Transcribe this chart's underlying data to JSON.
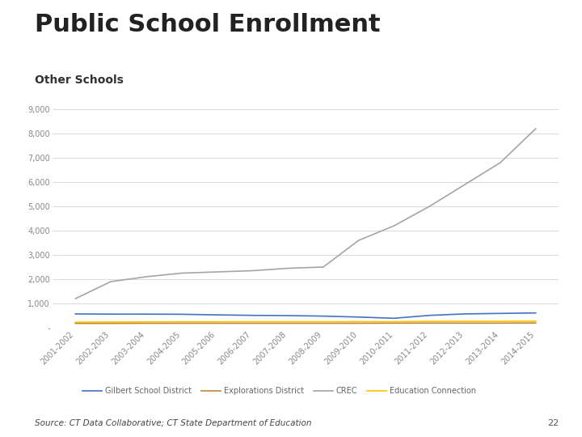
{
  "title": "Public School Enrollment",
  "subtitle": "Other Schools",
  "source": "Source: CT Data Collaborative; CT State Department of Education",
  "page_number": "22",
  "x_labels": [
    "2001-2002",
    "2002-2003",
    "2003-2004",
    "2004-2005",
    "2005-2006",
    "2006-2007",
    "2007-2008",
    "2008-2009",
    "2009-2010",
    "2010-2011",
    "2011-2012",
    "2012-2013",
    "2013-2014",
    "2014-2015"
  ],
  "series": [
    {
      "name": "Gilbert School District",
      "color": "#4472C4",
      "values": [
        570,
        560,
        560,
        555,
        530,
        510,
        500,
        480,
        440,
        390,
        510,
        570,
        590,
        610
      ]
    },
    {
      "name": "Explorations District",
      "color": "#C0873A",
      "values": [
        180,
        180,
        185,
        185,
        185,
        185,
        185,
        185,
        185,
        190,
        190,
        190,
        190,
        195
      ]
    },
    {
      "name": "CREC",
      "color": "#A5A5A5",
      "values": [
        1200,
        1900,
        2100,
        2250,
        2300,
        2350,
        2450,
        2500,
        3600,
        4200,
        5000,
        5900,
        6800,
        8200
      ]
    },
    {
      "name": "Education Connection",
      "color": "#FFC000",
      "values": [
        230,
        235,
        240,
        245,
        245,
        250,
        250,
        250,
        250,
        250,
        260,
        265,
        265,
        270
      ]
    }
  ],
  "ylim": [
    0,
    9000
  ],
  "yticks": [
    0,
    1000,
    2000,
    3000,
    4000,
    5000,
    6000,
    7000,
    8000,
    9000
  ],
  "ytick_labels": [
    "-",
    "1,000",
    "2,000",
    "3,000",
    "4,000",
    "5,000",
    "6,000",
    "7,000",
    "8,000",
    "9,000"
  ],
  "background_color": "#FFFFFF",
  "grid_color": "#D9D9D9",
  "title_fontsize": 22,
  "subtitle_fontsize": 10,
  "axis_fontsize": 7,
  "legend_fontsize": 7
}
